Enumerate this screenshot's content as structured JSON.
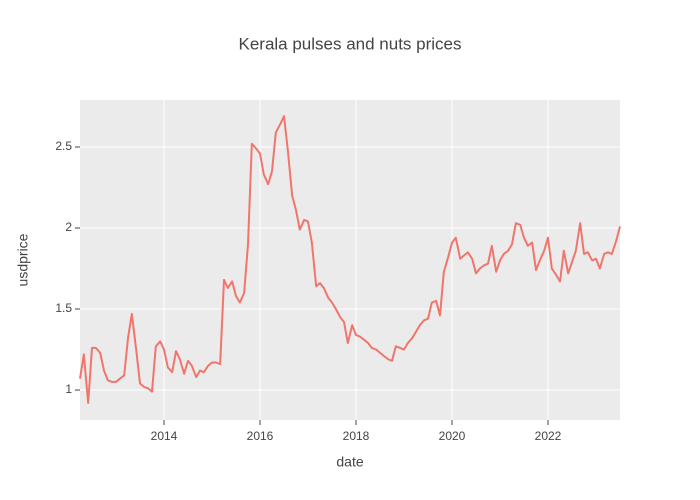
{
  "chart_data": {
    "type": "line",
    "title": "Kerala pulses and nuts prices",
    "x_label": "date",
    "y_label": "usdprice",
    "x": [
      2012.25,
      2012.33,
      2012.42,
      2012.5,
      2012.58,
      2012.67,
      2012.75,
      2012.83,
      2012.92,
      2013.0,
      2013.08,
      2013.17,
      2013.25,
      2013.33,
      2013.42,
      2013.5,
      2013.58,
      2013.67,
      2013.75,
      2013.83,
      2013.92,
      2014.0,
      2014.08,
      2014.17,
      2014.25,
      2014.33,
      2014.42,
      2014.5,
      2014.58,
      2014.67,
      2014.75,
      2014.83,
      2014.92,
      2015.0,
      2015.08,
      2015.17,
      2015.25,
      2015.33,
      2015.42,
      2015.5,
      2015.58,
      2015.67,
      2015.75,
      2015.83,
      2015.92,
      2016.0,
      2016.08,
      2016.17,
      2016.25,
      2016.33,
      2016.42,
      2016.5,
      2016.58,
      2016.67,
      2016.75,
      2016.83,
      2016.92,
      2017.0,
      2017.08,
      2017.17,
      2017.25,
      2017.33,
      2017.42,
      2017.5,
      2017.58,
      2017.67,
      2017.75,
      2017.83,
      2017.92,
      2018.0,
      2018.08,
      2018.17,
      2018.25,
      2018.33,
      2018.42,
      2018.5,
      2018.58,
      2018.67,
      2018.75,
      2018.83,
      2018.92,
      2019.0,
      2019.08,
      2019.17,
      2019.25,
      2019.33,
      2019.42,
      2019.5,
      2019.58,
      2019.67,
      2019.75,
      2019.83,
      2019.92,
      2020.0,
      2020.08,
      2020.17,
      2020.25,
      2020.33,
      2020.42,
      2020.5,
      2020.58,
      2020.67,
      2020.75,
      2020.83,
      2020.92,
      2021.0,
      2021.08,
      2021.17,
      2021.25,
      2021.33,
      2021.42,
      2021.5,
      2021.58,
      2021.67,
      2021.75,
      2021.83,
      2021.92,
      2022.0,
      2022.08,
      2022.17,
      2022.25,
      2022.33,
      2022.42,
      2022.5,
      2022.58,
      2022.67,
      2022.75,
      2022.83,
      2022.92,
      2023.0,
      2023.08,
      2023.17,
      2023.25,
      2023.33,
      2023.42,
      2023.5
    ],
    "series": [
      {
        "color": "#f0766d",
        "values": [
          1.07,
          1.22,
          0.92,
          1.26,
          1.26,
          1.23,
          1.12,
          1.06,
          1.05,
          1.05,
          1.07,
          1.09,
          1.32,
          1.47,
          1.25,
          1.04,
          1.02,
          1.01,
          0.99,
          1.27,
          1.3,
          1.25,
          1.14,
          1.11,
          1.24,
          1.19,
          1.1,
          1.18,
          1.15,
          1.08,
          1.12,
          1.11,
          1.15,
          1.17,
          1.17,
          1.16,
          1.68,
          1.63,
          1.67,
          1.58,
          1.54,
          1.6,
          1.9,
          2.52,
          2.49,
          2.46,
          2.33,
          2.27,
          2.35,
          2.59,
          2.64,
          2.69,
          2.48,
          2.2,
          2.11,
          1.99,
          2.05,
          2.04,
          1.91,
          1.64,
          1.66,
          1.63,
          1.57,
          1.54,
          1.5,
          1.45,
          1.42,
          1.29,
          1.4,
          1.34,
          1.33,
          1.31,
          1.29,
          1.26,
          1.25,
          1.23,
          1.21,
          1.19,
          1.18,
          1.27,
          1.26,
          1.25,
          1.29,
          1.32,
          1.36,
          1.4,
          1.43,
          1.44,
          1.54,
          1.55,
          1.46,
          1.73,
          1.82,
          1.91,
          1.94,
          1.81,
          1.83,
          1.85,
          1.81,
          1.72,
          1.75,
          1.77,
          1.78,
          1.89,
          1.73,
          1.8,
          1.84,
          1.86,
          1.9,
          2.03,
          2.02,
          1.94,
          1.89,
          1.91,
          1.74,
          1.8,
          1.86,
          1.94,
          1.75,
          1.71,
          1.67,
          1.86,
          1.72,
          1.79,
          1.86,
          2.03,
          1.84,
          1.85,
          1.8,
          1.81,
          1.75,
          1.84,
          1.85,
          1.84,
          1.92,
          2.01
        ]
      }
    ],
    "xlim": [
      2012.25,
      2023.5
    ],
    "xticks": [
      2014,
      2016,
      2018,
      2020,
      2022
    ],
    "ylim": [
      0.815,
      2.79
    ],
    "yticks": [
      1,
      1.5,
      2,
      2.5
    ],
    "grid": true
  }
}
